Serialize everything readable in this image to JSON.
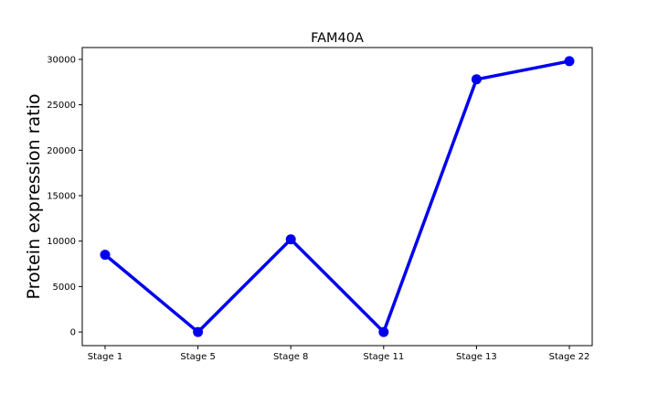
{
  "chart_data": {
    "type": "line",
    "title": "FAM40A",
    "xlabel": "",
    "ylabel": "Protein expression ratio",
    "categories": [
      "Stage 1",
      "Stage 5",
      "Stage 8",
      "Stage 11",
      "Stage 13",
      "Stage 22"
    ],
    "series": [
      {
        "values": [
          8500,
          0,
          10200,
          0,
          27800,
          29800
        ],
        "color": "#0000ee"
      }
    ],
    "ylim": [
      -1500,
      31300
    ],
    "yticks": [
      0,
      5000,
      10000,
      15000,
      20000,
      25000,
      30000
    ],
    "grid": false,
    "legend": "none"
  }
}
